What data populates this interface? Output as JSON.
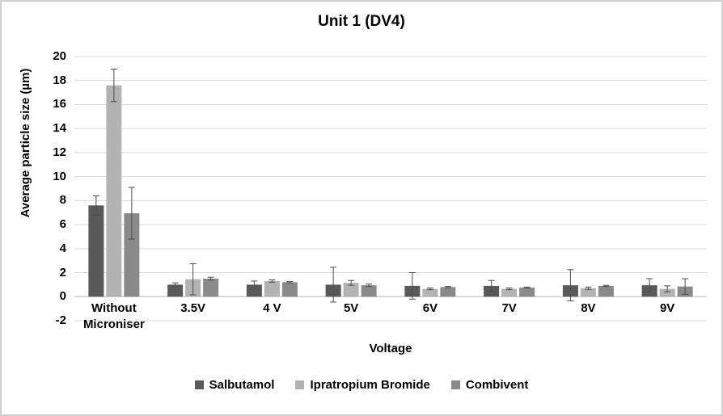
{
  "chart_data": {
    "type": "bar",
    "title": "Unit 1 (DV4)",
    "xlabel": "Voltage",
    "ylabel": "Average particle size (µm)",
    "categories": [
      "Without Microniser",
      "3.5V",
      "4 V",
      "5V",
      "6V",
      "7V",
      "8V",
      "9V"
    ],
    "series": [
      {
        "name": "Salbutamol",
        "color": "#595959",
        "values": [
          7.6,
          1.0,
          1.0,
          1.0,
          0.9,
          0.9,
          0.95,
          0.95
        ],
        "errors": [
          0.8,
          0.15,
          0.3,
          1.45,
          1.1,
          0.45,
          1.3,
          0.55
        ]
      },
      {
        "name": "Ipratropium Bromide",
        "color": "#b3b3b3",
        "values": [
          17.6,
          1.45,
          1.3,
          1.15,
          0.65,
          0.65,
          0.7,
          0.65
        ],
        "errors": [
          1.35,
          1.3,
          0.1,
          0.2,
          0.07,
          0.07,
          0.1,
          0.25
        ]
      },
      {
        "name": "Combivent",
        "color": "#8a8a8a",
        "values": [
          6.95,
          1.5,
          1.2,
          0.95,
          0.8,
          0.75,
          0.9,
          0.85
        ],
        "errors": [
          2.15,
          0.12,
          0.06,
          0.1,
          0.05,
          0.05,
          0.05,
          0.65
        ]
      }
    ],
    "y_axis": {
      "min": -2,
      "max": 20,
      "step": 2,
      "tick_labels": [
        "-2",
        "0",
        "2",
        "4",
        "6",
        "8",
        "10",
        "12",
        "14",
        "16",
        "18",
        "20"
      ]
    },
    "grid": true,
    "legend_position": "bottom",
    "gridline_color": "#d9d9d9",
    "axis_line_color": "#bfbfbf",
    "error_bar_color": "#4d4d4d"
  }
}
